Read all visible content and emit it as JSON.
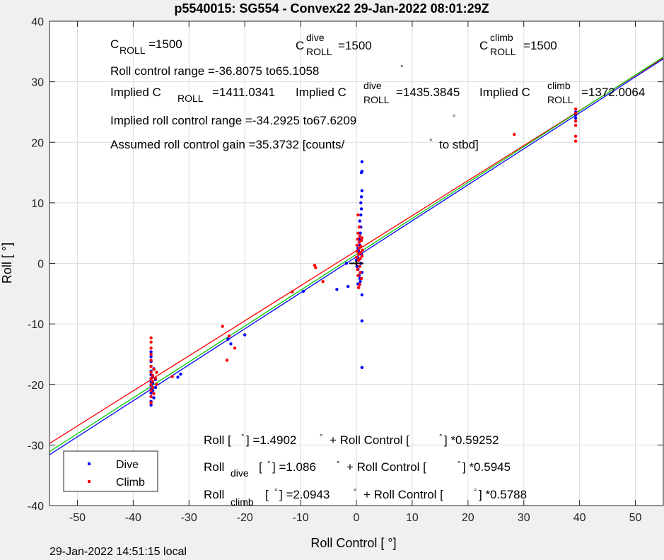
{
  "title": "p5540015: SG554 - Convex22 29-Jan-2022 08:01:29Z",
  "footer": "29-Jan-2022 14:51:15 local",
  "annotations": {
    "c_roll": {
      "c": "C",
      "sub": "ROLL",
      "value": "=1500"
    },
    "c_roll_dive": {
      "c": "C",
      "sup": "dive",
      "sub": "ROLL",
      "value": "=1500"
    },
    "c_roll_climb": {
      "c": "C",
      "sup": "climb",
      "sub": "ROLL",
      "value": "=1500"
    },
    "roll_range": "Roll control range =-36.8075 to65.1058",
    "implied_c": {
      "label": "Implied C",
      "sub": "ROLL",
      "value": "=1411.0341"
    },
    "implied_c_dive": {
      "label": "Implied C",
      "sup": "dive",
      "sub": "ROLL",
      "value": "=1435.3845"
    },
    "implied_c_climb": {
      "label": "Implied C",
      "sup": "climb",
      "sub": "ROLL",
      "value": "=1372.0064"
    },
    "implied_range": "Implied roll control range =-34.2925 to67.6209",
    "gain_prefix": "Assumed roll control gain =35.3732 [counts/",
    "gain_suffix": "to stbd]",
    "degree": "°",
    "fit_all": {
      "p1": "Roll [",
      "p2": "] =1.4902",
      "p3": "+ Roll Control [",
      "p4": "] *0.59252"
    },
    "fit_dive": {
      "p1": "Roll",
      "sub": "dive",
      "p2": "[",
      "p3": "] =1.086",
      "p4": "+ Roll Control [",
      "p5": "] *0.5945"
    },
    "fit_climb": {
      "p1": "Roll",
      "sub": "climb",
      "p2": "[",
      "p3": "] =2.0943",
      "p4": "+ Roll Control [",
      "p5": "] *0.5788"
    }
  },
  "chart_data": {
    "type": "scatter",
    "title": "p5540015: SG554 - Convex22 29-Jan-2022 08:01:29Z",
    "xlabel": "Roll Control [   °]",
    "ylabel": "Roll [   °]",
    "xlim": [
      -55,
      55
    ],
    "ylim": [
      -40,
      40
    ],
    "xticks": [
      -50,
      -40,
      -30,
      -20,
      -10,
      0,
      10,
      20,
      30,
      40,
      50
    ],
    "yticks": [
      -40,
      -30,
      -20,
      -10,
      0,
      10,
      20,
      30,
      40
    ],
    "grid": true,
    "legend_position": "bottom-left",
    "series": [
      {
        "name": "Dive",
        "color": "#0000ff",
        "points": [
          [
            -36.8,
            -23.4
          ],
          [
            -36.8,
            -22.8
          ],
          [
            -36.8,
            -22.0
          ],
          [
            -36.8,
            -21.4
          ],
          [
            -36.8,
            -20.8
          ],
          [
            -36.8,
            -20.2
          ],
          [
            -36.8,
            -19.6
          ],
          [
            -36.8,
            -19.0
          ],
          [
            -36.8,
            -18.4
          ],
          [
            -36.8,
            -17.8
          ],
          [
            -36.8,
            -17.0
          ],
          [
            -36.8,
            -16.2
          ],
          [
            -36.8,
            -15.4
          ],
          [
            -36.8,
            -14.6
          ],
          [
            -36.5,
            -21.0
          ],
          [
            -36.5,
            -19.8
          ],
          [
            -36.5,
            -18.6
          ],
          [
            -36.3,
            -22.2
          ],
          [
            -36.3,
            -17.4
          ],
          [
            -36.0,
            -20.5
          ],
          [
            -36.0,
            -19.2
          ],
          [
            -32.0,
            -18.8
          ],
          [
            -31.5,
            -18.3
          ],
          [
            -23.0,
            -12.5
          ],
          [
            -22.5,
            -13.3
          ],
          [
            -20.0,
            -11.8
          ],
          [
            -9.5,
            -4.6
          ],
          [
            -3.5,
            -4.3
          ],
          [
            -1.5,
            -3.8
          ],
          [
            -1.8,
            0.0
          ],
          [
            0.0,
            0.5
          ],
          [
            0.1,
            -0.5
          ],
          [
            0.2,
            1.0
          ],
          [
            0.3,
            -1.0
          ],
          [
            0.4,
            2.0
          ],
          [
            0.5,
            -2.0
          ],
          [
            0.6,
            3.0
          ],
          [
            0.7,
            -3.0
          ],
          [
            0.5,
            4.0
          ],
          [
            0.4,
            -4.0
          ],
          [
            0.8,
            0.0
          ],
          [
            0.9,
            1.5
          ],
          [
            1.0,
            -1.5
          ],
          [
            0.3,
            2.5
          ],
          [
            0.6,
            -2.5
          ],
          [
            0.7,
            5.0
          ],
          [
            0.8,
            6.0
          ],
          [
            0.6,
            7.0
          ],
          [
            0.8,
            8.0
          ],
          [
            0.9,
            9.0
          ],
          [
            0.8,
            10.0
          ],
          [
            0.9,
            11.0
          ],
          [
            1.0,
            12.0
          ],
          [
            0.9,
            15.0
          ],
          [
            1.0,
            15.2
          ],
          [
            1.0,
            16.8
          ],
          [
            1.0,
            -5.2
          ],
          [
            1.0,
            -9.5
          ],
          [
            1.0,
            -17.2
          ],
          [
            0.3,
            -3.4
          ],
          [
            0.5,
            3.5
          ],
          [
            39.3,
            24.0
          ],
          [
            39.3,
            24.5
          ],
          [
            39.3,
            25.0
          ]
        ]
      },
      {
        "name": "Climb",
        "color": "#ff0000",
        "points": [
          [
            -36.8,
            -12.3
          ],
          [
            -36.8,
            -13.0
          ],
          [
            -36.8,
            -14.0
          ],
          [
            -36.8,
            -15.0
          ],
          [
            -36.8,
            -16.0
          ],
          [
            -36.8,
            -17.0
          ],
          [
            -36.8,
            -18.0
          ],
          [
            -36.8,
            -19.0
          ],
          [
            -36.8,
            -20.0
          ],
          [
            -36.8,
            -21.0
          ],
          [
            -36.8,
            -22.0
          ],
          [
            -36.8,
            -23.0
          ],
          [
            -36.5,
            -18.5
          ],
          [
            -36.5,
            -19.5
          ],
          [
            -36.5,
            -20.5
          ],
          [
            -36.3,
            -17.5
          ],
          [
            -36.3,
            -21.5
          ],
          [
            -36.0,
            -19.0
          ],
          [
            -35.8,
            -18.0
          ],
          [
            -35.8,
            -20.0
          ],
          [
            -33.0,
            -18.7
          ],
          [
            -24.0,
            -10.4
          ],
          [
            -23.2,
            -16.0
          ],
          [
            -22.8,
            -12.0
          ],
          [
            -21.8,
            -14.0
          ],
          [
            -11.5,
            -4.7
          ],
          [
            -7.5,
            -0.3
          ],
          [
            -7.3,
            -0.7
          ],
          [
            -6.0,
            -3.0
          ],
          [
            0.0,
            0.0
          ],
          [
            0.0,
            1.0
          ],
          [
            0.1,
            2.0
          ],
          [
            0.1,
            3.0
          ],
          [
            0.2,
            -1.0
          ],
          [
            0.2,
            4.0
          ],
          [
            0.3,
            -2.0
          ],
          [
            0.3,
            5.0
          ],
          [
            0.4,
            0.5
          ],
          [
            0.4,
            1.5
          ],
          [
            0.5,
            2.5
          ],
          [
            0.5,
            3.5
          ],
          [
            0.6,
            -0.5
          ],
          [
            0.6,
            4.5
          ],
          [
            0.7,
            -1.5
          ],
          [
            0.7,
            0.8
          ],
          [
            0.8,
            1.8
          ],
          [
            0.8,
            2.8
          ],
          [
            0.9,
            -2.5
          ],
          [
            0.9,
            3.8
          ],
          [
            1.0,
            1.2
          ],
          [
            1.0,
            4.2
          ],
          [
            1.1,
            2.2
          ],
          [
            0.5,
            6.0
          ],
          [
            0.3,
            8.0
          ],
          [
            0.6,
            -3.5
          ],
          [
            0.4,
            -4.0
          ],
          [
            28.3,
            21.3
          ],
          [
            39.3,
            25.5
          ],
          [
            39.3,
            24.8
          ],
          [
            39.3,
            23.5
          ],
          [
            39.3,
            22.8
          ],
          [
            39.3,
            21.0
          ],
          [
            39.3,
            20.2
          ]
        ]
      }
    ],
    "fits": [
      {
        "name": "Dive fit",
        "color": "#0000ff",
        "intercept": 1.086,
        "slope": 0.5945
      },
      {
        "name": "Climb fit",
        "color": "#ff0000",
        "intercept": 2.0943,
        "slope": 0.5788
      },
      {
        "name": "Overall fit",
        "color": "#00cc00",
        "intercept": 1.4902,
        "slope": 0.59252
      }
    ],
    "marker": {
      "color": "#000000",
      "points": [
        [
          0,
          0
        ]
      ]
    }
  },
  "legend": [
    {
      "label": "Dive",
      "color": "#0000ff"
    },
    {
      "label": "Climb",
      "color": "#ff0000"
    }
  ]
}
